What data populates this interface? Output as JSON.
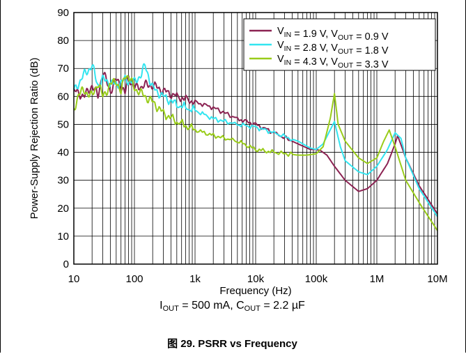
{
  "chart_data": {
    "type": "line",
    "title": "",
    "xlabel": "Frequency (Hz)",
    "ylabel": "Power-Supply Rejection Ratio (dB)",
    "x_scale": "log",
    "xlim": [
      10,
      10000000
    ],
    "ylim": [
      0,
      90
    ],
    "grid": true,
    "legend_position": "top-right",
    "x_ticks": [
      "10",
      "100",
      "1k",
      "10k",
      "100k",
      "1M",
      "10M"
    ],
    "y_ticks": [
      "0",
      "10",
      "20",
      "30",
      "40",
      "50",
      "60",
      "70",
      "80",
      "90"
    ],
    "series": [
      {
        "name_parts": {
          "v1": "V",
          "s1": "IN",
          "m": " = 1.9 V, ",
          "v2": "V",
          "s2": "OUT",
          "e": " = 0.9 V"
        },
        "color": "#8B2252",
        "x": [
          10,
          15,
          20,
          25,
          30,
          35,
          40,
          50,
          60,
          70,
          80,
          100,
          150,
          200,
          300,
          500,
          1000,
          2000,
          5000,
          10000,
          20000,
          50000,
          80000,
          100000,
          120000,
          150000,
          200000,
          300000,
          500000,
          700000,
          1000000,
          1500000,
          2000000,
          2200000,
          3000000,
          5000000,
          10000000
        ],
        "y": [
          62,
          60,
          64,
          60,
          69,
          65,
          62,
          66,
          64,
          61,
          67,
          63,
          64,
          64,
          62,
          60,
          58,
          56,
          52,
          50,
          47,
          43,
          41,
          41,
          40.5,
          39,
          35,
          30,
          26,
          27,
          30,
          36,
          43,
          46,
          38,
          28,
          18
        ]
      },
      {
        "name_parts": {
          "v1": "V",
          "s1": "IN",
          "m": " = 2.8 V, ",
          "v2": "V",
          "s2": "OUT",
          "e": " = 1.8 V"
        },
        "color": "#33E5F0",
        "x": [
          10,
          15,
          20,
          25,
          30,
          40,
          50,
          70,
          100,
          130,
          150,
          200,
          300,
          500,
          1000,
          2000,
          5000,
          10000,
          20000,
          50000,
          80000,
          100000,
          130000,
          170000,
          200000,
          250000,
          300000,
          500000,
          700000,
          1000000,
          1500000,
          2000000,
          2500000,
          3000000,
          5000000,
          10000000
        ],
        "y": [
          62,
          68,
          71,
          64,
          66,
          65,
          64,
          66,
          65,
          68,
          71,
          63,
          60,
          57,
          55,
          52,
          50,
          49,
          47,
          44,
          41.5,
          41,
          43,
          48,
          51,
          42,
          37,
          33,
          32,
          35,
          41,
          47,
          45,
          38,
          27,
          17
        ]
      },
      {
        "name_parts": {
          "v1": "V",
          "s1": "IN",
          "m": " = 4.3 V, ",
          "v2": "V",
          "s2": "OUT",
          "e": " = 3.3 V"
        },
        "color": "#99CC1A",
        "x": [
          10,
          12,
          15,
          20,
          25,
          30,
          40,
          50,
          60,
          70,
          80,
          100,
          150,
          200,
          300,
          500,
          1000,
          2000,
          5000,
          10000,
          20000,
          50000,
          70000,
          100000,
          130000,
          170000,
          200000,
          230000,
          300000,
          500000,
          700000,
          1000000,
          1300000,
          1600000,
          2000000,
          3000000,
          5000000,
          10000000
        ],
        "y": [
          55,
          61,
          62,
          60,
          65,
          60,
          64,
          66,
          61,
          68,
          67,
          63,
          60,
          58,
          54,
          51,
          48,
          46,
          44,
          41,
          40,
          39,
          39,
          39.5,
          42,
          52,
          61,
          50,
          44,
          38,
          36,
          38,
          44,
          48,
          42,
          30,
          22,
          12
        ]
      }
    ]
  },
  "conditions": {
    "i": "I",
    "i_sub": "OUT",
    "i_val": " = 500 mA, ",
    "c": "C",
    "c_sub": "OUT",
    "c_val": " = 2.2 µF"
  },
  "caption": "图 29. PSRR vs Frequency"
}
